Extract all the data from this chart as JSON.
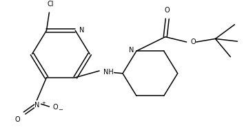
{
  "figsize": [
    3.54,
    1.92
  ],
  "dpi": 100,
  "bg_color": "#ffffff",
  "line_color": "#000000",
  "line_width": 1.1,
  "font_size": 7.0,
  "xlim": [
    0,
    354
  ],
  "ylim": [
    0,
    192
  ]
}
